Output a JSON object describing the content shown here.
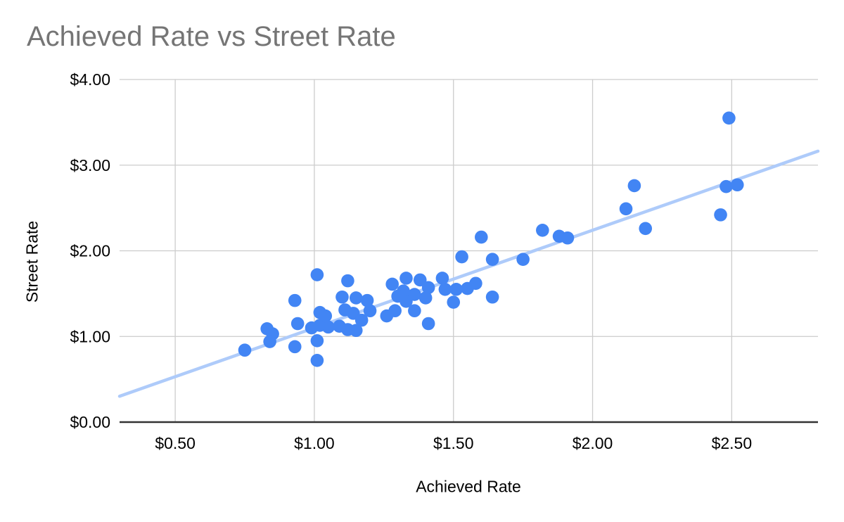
{
  "header": {
    "title": "Achieved Rate vs Street Rate"
  },
  "chart_data": {
    "type": "scatter",
    "title": "Achieved Rate vs Street Rate",
    "xlabel": "Achieved Rate",
    "ylabel": "Street Rate",
    "xlim": [
      0.3,
      2.81
    ],
    "ylim": [
      0,
      4
    ],
    "x_ticks": [
      0.5,
      1.0,
      1.5,
      2.0,
      2.5
    ],
    "x_tick_labels": [
      "$0.50",
      "$1.00",
      "$1.50",
      "$2.00",
      "$2.50"
    ],
    "y_ticks": [
      0,
      1,
      2,
      3,
      4
    ],
    "y_tick_labels": [
      "$0.00",
      "$1.00",
      "$2.00",
      "$3.00",
      "$4.00"
    ],
    "grid": true,
    "legend": "none",
    "colors": {
      "point": "#4285F4",
      "trendline": "#AECBFA",
      "gridline": "#CCCCCC",
      "axis_line": "#333333",
      "title_text": "#757575",
      "tick_text": "#000000"
    },
    "point_radius": 9.3,
    "series": [
      {
        "name": "Street Rate",
        "points": [
          [
            0.75,
            0.84
          ],
          [
            0.83,
            1.09
          ],
          [
            0.85,
            1.03
          ],
          [
            0.84,
            0.94
          ],
          [
            0.93,
            1.42
          ],
          [
            0.94,
            1.15
          ],
          [
            0.93,
            0.88
          ],
          [
            1.01,
            1.72
          ],
          [
            1.01,
            0.72
          ],
          [
            0.99,
            1.1
          ],
          [
            1.02,
            1.13
          ],
          [
            1.05,
            1.11
          ],
          [
            1.01,
            0.95
          ],
          [
            1.02,
            1.28
          ],
          [
            1.04,
            1.24
          ],
          [
            1.1,
            1.46
          ],
          [
            1.15,
            1.45
          ],
          [
            1.12,
            1.65
          ],
          [
            1.11,
            1.31
          ],
          [
            1.14,
            1.27
          ],
          [
            1.19,
            1.42
          ],
          [
            1.2,
            1.3
          ],
          [
            1.17,
            1.19
          ],
          [
            1.09,
            1.12
          ],
          [
            1.12,
            1.08
          ],
          [
            1.15,
            1.07
          ],
          [
            1.26,
            1.24
          ],
          [
            1.29,
            1.3
          ],
          [
            1.28,
            1.61
          ],
          [
            1.33,
            1.68
          ],
          [
            1.38,
            1.66
          ],
          [
            1.46,
            1.68
          ],
          [
            1.41,
            1.57
          ],
          [
            1.32,
            1.53
          ],
          [
            1.3,
            1.47
          ],
          [
            1.36,
            1.49
          ],
          [
            1.4,
            1.45
          ],
          [
            1.33,
            1.41
          ],
          [
            1.36,
            1.3
          ],
          [
            1.41,
            1.15
          ],
          [
            1.5,
            1.4
          ],
          [
            1.47,
            1.55
          ],
          [
            1.51,
            1.55
          ],
          [
            1.55,
            1.56
          ],
          [
            1.58,
            1.62
          ],
          [
            1.53,
            1.93
          ],
          [
            1.6,
            2.16
          ],
          [
            1.64,
            1.9
          ],
          [
            1.64,
            1.46
          ],
          [
            1.75,
            1.9
          ],
          [
            1.82,
            2.24
          ],
          [
            1.88,
            2.17
          ],
          [
            1.91,
            2.15
          ],
          [
            2.12,
            2.49
          ],
          [
            2.15,
            2.76
          ],
          [
            2.19,
            2.26
          ],
          [
            2.46,
            2.42
          ],
          [
            2.48,
            2.75
          ],
          [
            2.52,
            2.77
          ],
          [
            2.49,
            3.55
          ]
        ]
      }
    ],
    "trendline": {
      "type": "linear",
      "slope": 1.14,
      "intercept": -0.04,
      "x_range": [
        0.3,
        2.81
      ]
    }
  }
}
